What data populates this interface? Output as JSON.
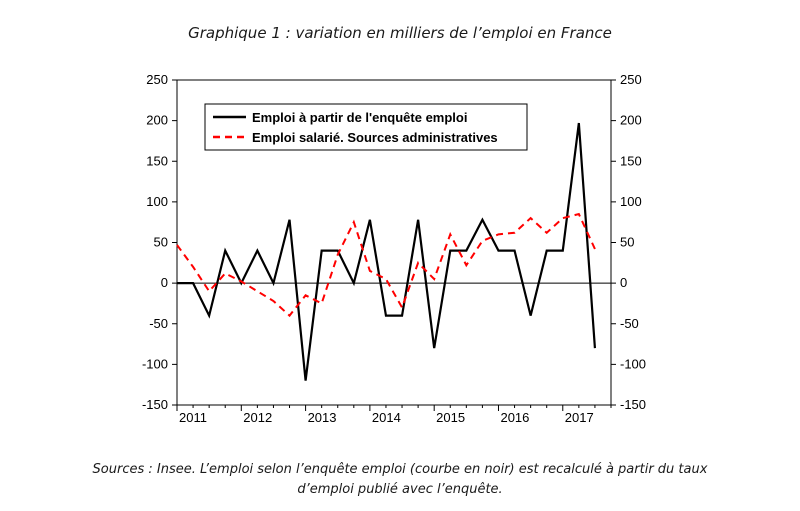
{
  "title": "Graphique 1 : variation en milliers de l’emploi en France",
  "source_line1": "Sources : Insee. L’emploi selon l’enquête emploi (courbe en noir) est recalculé à partir du taux",
  "source_line2": "d’emploi publié avec l’enquête.",
  "colors": {
    "series1": "#000000",
    "series2": "#ff0000"
  },
  "chart_data": {
    "type": "line",
    "xlim": [
      2011,
      2017.75
    ],
    "ylim": [
      -150,
      250
    ],
    "x_ticks": [
      "2011",
      "2012",
      "2013",
      "2014",
      "2015",
      "2016",
      "2017"
    ],
    "y_ticks_left": [
      "250",
      "200",
      "150",
      "100",
      "50",
      "0",
      "-50",
      "-100",
      "-150"
    ],
    "y_ticks_right": [
      "250",
      "200",
      "150",
      "100",
      "50",
      "0",
      "-50",
      "-100",
      "-150"
    ],
    "legend": {
      "position": "top-left"
    },
    "series": [
      {
        "name": "Emploi à partir de l'enquête emploi",
        "x": [
          2011.0,
          2011.25,
          2011.5,
          2011.75,
          2012.0,
          2012.25,
          2012.5,
          2012.75,
          2013.0,
          2013.25,
          2013.5,
          2013.75,
          2014.0,
          2014.25,
          2014.5,
          2014.75,
          2015.0,
          2015.25,
          2015.5,
          2015.75,
          2016.0,
          2016.25,
          2016.5,
          2016.75,
          2017.0,
          2017.25,
          2017.5
        ],
        "values": [
          0,
          0,
          -40,
          40,
          0,
          40,
          0,
          78,
          -120,
          40,
          40,
          0,
          78,
          -40,
          -40,
          78,
          -80,
          40,
          40,
          78,
          40,
          40,
          -40,
          40,
          40,
          197,
          -80
        ]
      },
      {
        "name": "Emploi salarié. Sources administratives",
        "x": [
          2011.0,
          2011.25,
          2011.5,
          2011.75,
          2012.0,
          2012.25,
          2012.5,
          2012.75,
          2013.0,
          2013.25,
          2013.5,
          2013.75,
          2014.0,
          2014.25,
          2014.5,
          2014.75,
          2015.0,
          2015.25,
          2015.5,
          2015.75,
          2016.0,
          2016.25,
          2016.5,
          2016.75,
          2017.0,
          2017.25,
          2017.5
        ],
        "values": [
          47,
          20,
          -10,
          12,
          2,
          -10,
          -22,
          -40,
          -15,
          -25,
          35,
          75,
          15,
          5,
          -30,
          25,
          5,
          60,
          22,
          52,
          60,
          62,
          80,
          62,
          80,
          85,
          42
        ]
      }
    ]
  }
}
